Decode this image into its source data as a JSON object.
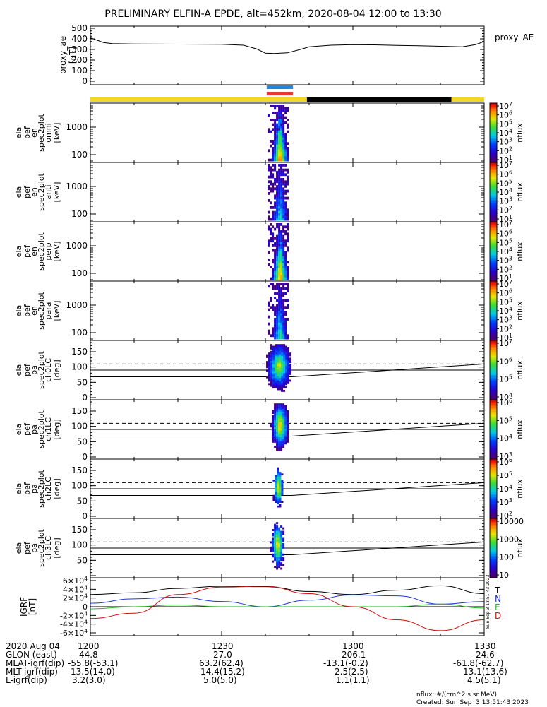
{
  "title": "PRELIMINARY ELFIN-A EPDE, alt=452km, 2020-08-04 12:00 to 13:30",
  "footer": {
    "units": "nflux: #/(cm^2 s sr MeV)",
    "created": "Created: Sun Sep  3 13:51:43 2023",
    "watermark": "Sun Sep  3 13:51:43 2023"
  },
  "colors": {
    "yellow_bar": "#f5d623",
    "black_bar": "#000000",
    "blue_marker": "#1e88e5",
    "red_marker": "#e53935",
    "T": "#000000",
    "N": "#1e35d8",
    "E": "#22bb22",
    "D": "#d01010"
  },
  "time_axis": {
    "start_min": 0,
    "end_min": 90,
    "ticks": [
      {
        "min": 0,
        "label": "1200"
      },
      {
        "min": 30,
        "label": "1230"
      },
      {
        "min": 60,
        "label": "1300"
      },
      {
        "min": 90,
        "label": "1330"
      }
    ]
  },
  "status_bars": {
    "yellow_ranges": [
      [
        0,
        49.5
      ],
      [
        82.5,
        90
      ]
    ],
    "black_ranges": [
      [
        49.5,
        82.5
      ]
    ],
    "blue_marker": [
      40.3,
      46.3
    ],
    "red_marker": [
      40.3,
      46.3
    ]
  },
  "chart_data": [
    {
      "name": "proxy_ae",
      "type": "line",
      "ylabel": "proxy_ae\n[nT]",
      "legend": "proxy_AE",
      "ylim": [
        0,
        500
      ],
      "yticks": [
        "0",
        "100",
        "200",
        "300",
        "400",
        "500"
      ],
      "x": [
        0,
        1,
        3,
        5,
        10,
        20,
        30,
        35,
        38,
        40,
        42,
        45,
        48,
        50,
        55,
        60,
        65,
        70,
        75,
        80,
        85,
        88,
        90
      ],
      "y": [
        410,
        395,
        365,
        355,
        352,
        350,
        348,
        340,
        305,
        265,
        262,
        268,
        300,
        325,
        340,
        345,
        343,
        338,
        335,
        330,
        325,
        345,
        375
      ]
    },
    {
      "name": "spec-omni",
      "type": "heatmap",
      "ylabel": [
        "ela",
        "pef",
        "en",
        "spec2plot",
        "omni",
        "[keV]"
      ],
      "ytick_labels": [
        "100",
        "1000"
      ],
      "colorbar_labels": [
        "10^1",
        "10^2",
        "10^3",
        "10^4",
        "10^5",
        "10^6",
        "10^7"
      ],
      "colorbar_title": "nflux"
    },
    {
      "name": "spec-anti",
      "type": "heatmap",
      "ylabel": [
        "ela",
        "pef",
        "en",
        "spec2plot",
        "anti",
        "[keV]"
      ],
      "ytick_labels": [
        "100",
        "1000"
      ],
      "colorbar_labels": [
        "10^1",
        "10^2",
        "10^3",
        "10^4",
        "10^5",
        "10^6",
        "10^7"
      ],
      "colorbar_title": "nflux"
    },
    {
      "name": "spec-perp",
      "type": "heatmap",
      "ylabel": [
        "ela",
        "pef",
        "en",
        "spec2plot",
        "perp",
        "[keV]"
      ],
      "ytick_labels": [
        "100",
        "1000"
      ],
      "colorbar_labels": [
        "10^1",
        "10^2",
        "10^3",
        "10^4",
        "10^5",
        "10^6",
        "10^7"
      ],
      "colorbar_title": "nflux"
    },
    {
      "name": "spec-para",
      "type": "heatmap",
      "ylabel": [
        "ela",
        "pef",
        "en",
        "spec2plot",
        "para",
        "[keV]"
      ],
      "ytick_labels": [
        "100",
        "1000"
      ],
      "colorbar_labels": [
        "10^1",
        "10^2",
        "10^3",
        "10^4",
        "10^5",
        "10^6",
        "10^7"
      ],
      "colorbar_title": "nflux"
    },
    {
      "name": "pa-ch0",
      "type": "heatmap",
      "ylabel": [
        "ela",
        "pef",
        "pa",
        "spec2plot",
        "ch0LC",
        "[deg]"
      ],
      "ylim": [
        0,
        180
      ],
      "ytick_labels": [
        "0",
        "50",
        "100",
        "150"
      ],
      "colorbar_labels": [
        "10^4",
        "10^5",
        "10^6",
        "10^7"
      ],
      "colorbar_title": "nflux"
    },
    {
      "name": "pa-ch1",
      "type": "heatmap",
      "ylabel": [
        "ela",
        "pef",
        "pa",
        "spec2plot",
        "ch1LC",
        "[deg]"
      ],
      "ylim": [
        0,
        180
      ],
      "ytick_labels": [
        "0",
        "50",
        "100",
        "150"
      ],
      "colorbar_labels": [
        "10^3",
        "10^4",
        "10^5",
        "10^6"
      ],
      "colorbar_title": "nflux"
    },
    {
      "name": "pa-ch2",
      "type": "heatmap",
      "ylabel": [
        "ela",
        "pef",
        "pa",
        "spec2plot",
        "ch2LC",
        "[deg]"
      ],
      "ylim": [
        0,
        180
      ],
      "ytick_labels": [
        "0",
        "50",
        "100",
        "150"
      ],
      "colorbar_labels": [
        "10^2",
        "10^3",
        "10^4",
        "10^5",
        "10^6"
      ],
      "colorbar_title": "nflux"
    },
    {
      "name": "pa-ch3",
      "type": "heatmap",
      "ylabel": [
        "ela",
        "pef",
        "pa",
        "spec2plot",
        "ch3LC",
        "[deg]"
      ],
      "ylim": [
        0,
        180
      ],
      "ytick_labels": [
        "50",
        "100",
        "150"
      ],
      "colorbar_labels": [
        "10",
        "100",
        "1000",
        "10000"
      ],
      "colorbar_title": "nflux"
    },
    {
      "name": "igrf",
      "type": "line",
      "ylabel": [
        "IGRF",
        "[nT]"
      ],
      "ylim": [
        -60000,
        60000
      ],
      "ytick_labels": [
        "-6×10^4",
        "-4×10^4",
        "-2×10^4",
        "0",
        "2×10^4",
        "4×10^4",
        "6×10^4"
      ],
      "x": [
        0,
        10,
        20,
        30,
        40,
        50,
        60,
        70,
        80,
        90
      ],
      "series": [
        {
          "name": "T",
          "color": "#000000",
          "values": [
            28000,
            32000,
            42000,
            47000,
            46000,
            35000,
            28000,
            38000,
            48000,
            30000
          ]
        },
        {
          "name": "N",
          "color": "#1e35d8",
          "values": [
            8000,
            18000,
            22000,
            12000,
            0,
            15000,
            27000,
            25000,
            6000,
            12000
          ]
        },
        {
          "name": "E",
          "color": "#22bb22",
          "values": [
            -5000,
            0,
            4000,
            0,
            0,
            0,
            0,
            0,
            6000,
            -3000
          ]
        },
        {
          "name": "D",
          "color": "#d01010",
          "values": [
            -27000,
            -15000,
            28000,
            45000,
            47000,
            30000,
            0,
            -30000,
            -55000,
            -30000
          ]
        }
      ]
    }
  ],
  "orbit_table": {
    "rows": [
      {
        "label": "2020 Aug 04",
        "values": [
          "1200",
          "1230",
          "1300",
          "1330"
        ]
      },
      {
        "label": "GLON (east)",
        "values": [
          "44.8",
          "27.0",
          "206.1",
          "24.6"
        ]
      },
      {
        "label": "MLAT-igrf(dip)",
        "values": [
          "-55.8(-53.1)",
          "63.2(62.4)",
          "-13.1(-0.2)",
          "-61.8(-62.7)"
        ]
      },
      {
        "label": "MLT-igrf(dip)",
        "values": [
          "13.5(14.0)",
          "14.4(15.2)",
          "2.5(2.5)",
          "13.1(13.6)"
        ]
      },
      {
        "label": "L-igrf(dip)",
        "values": [
          "3.2(3.0)",
          "5.0(5.0)",
          "1.1(1.1)",
          "4.5(5.1)"
        ]
      }
    ]
  }
}
